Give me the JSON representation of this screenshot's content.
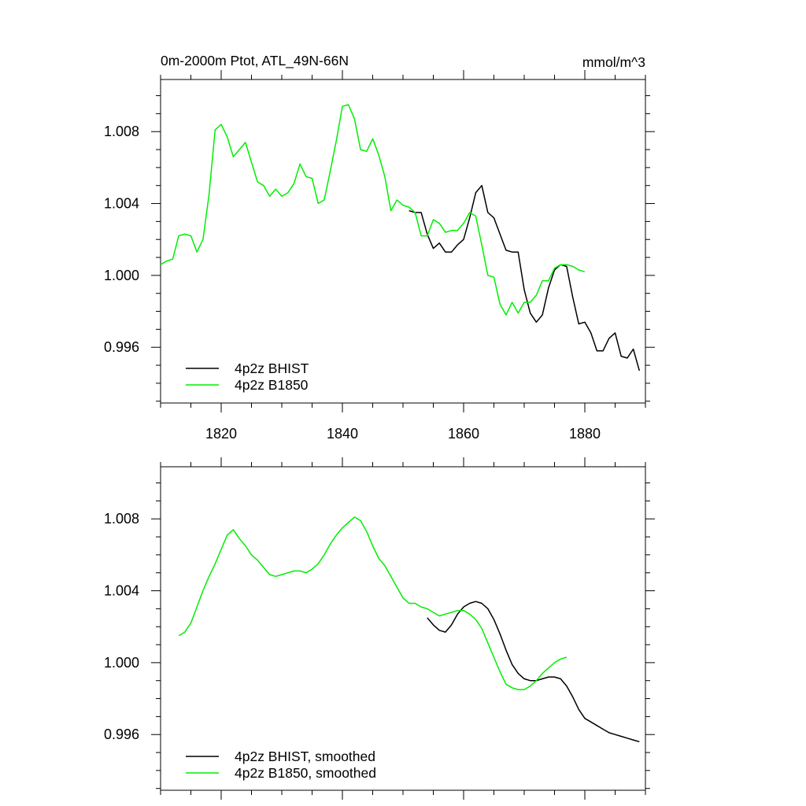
{
  "header": {
    "left_title": "0m-2000m Ptot, ATL_49N-66N",
    "right_title": "mmol/m^3"
  },
  "colors": {
    "bhist": "#000000",
    "b1850": "#00ee00"
  },
  "chart_data": [
    {
      "type": "line",
      "xlim": [
        1810,
        1890
      ],
      "ylim": [
        0.9929,
        1.0109
      ],
      "xticks": [
        1820,
        1840,
        1860,
        1880
      ],
      "xtick_labels": [
        "1820",
        "1840",
        "1860",
        "1880"
      ],
      "yticks": [
        0.996,
        1.0,
        1.004,
        1.008
      ],
      "ytick_labels": [
        "0.996",
        "1.000",
        "1.004",
        "1.008"
      ],
      "legend_position": "bottom-left",
      "series": [
        {
          "name": "4p2z BHIST",
          "color": "#000000",
          "x": [
            1851,
            1852,
            1853,
            1854,
            1855,
            1856,
            1857,
            1858,
            1859,
            1860,
            1861,
            1862,
            1863,
            1864,
            1865,
            1866,
            1867,
            1868,
            1869,
            1870,
            1871,
            1872,
            1873,
            1874,
            1875,
            1876,
            1877,
            1878,
            1879,
            1880,
            1881,
            1882,
            1883,
            1884,
            1885,
            1886,
            1887,
            1888,
            1889
          ],
          "y": [
            1.0036,
            1.0035,
            1.0035,
            1.0023,
            1.0015,
            1.0018,
            1.0013,
            1.0013,
            1.0017,
            1.002,
            1.0032,
            1.0046,
            1.005,
            1.0035,
            1.0032,
            1.0023,
            1.0014,
            1.0013,
            1.0013,
            0.9992,
            0.9979,
            0.9974,
            0.9978,
            0.9993,
            1.0003,
            1.0006,
            1.0005,
            0.9988,
            0.9973,
            0.9974,
            0.9968,
            0.9958,
            0.9958,
            0.9965,
            0.9968,
            0.9955,
            0.9954,
            0.9959,
            0.9947
          ]
        },
        {
          "name": "4p2z B1850",
          "color": "#00ee00",
          "x": [
            1810,
            1811,
            1812,
            1813,
            1814,
            1815,
            1816,
            1817,
            1818,
            1819,
            1820,
            1821,
            1822,
            1823,
            1824,
            1825,
            1826,
            1827,
            1828,
            1829,
            1830,
            1831,
            1832,
            1833,
            1834,
            1835,
            1836,
            1837,
            1838,
            1839,
            1840,
            1841,
            1842,
            1843,
            1844,
            1845,
            1846,
            1847,
            1848,
            1849,
            1850,
            1851,
            1852,
            1853,
            1854,
            1855,
            1856,
            1857,
            1858,
            1859,
            1860,
            1861,
            1862,
            1863,
            1864,
            1865,
            1866,
            1867,
            1868,
            1869,
            1870,
            1871,
            1872,
            1873,
            1874,
            1875,
            1876,
            1877,
            1878,
            1879,
            1880
          ],
          "y": [
            1.0006,
            1.0008,
            1.0009,
            1.0022,
            1.0023,
            1.0022,
            1.0013,
            1.002,
            1.0045,
            1.0081,
            1.0084,
            1.0077,
            1.0066,
            1.007,
            1.0074,
            1.0063,
            1.0052,
            1.005,
            1.0044,
            1.0048,
            1.0044,
            1.0046,
            1.0051,
            1.0062,
            1.0055,
            1.0054,
            1.004,
            1.0042,
            1.0058,
            1.0075,
            1.0094,
            1.0095,
            1.0087,
            1.007,
            1.0069,
            1.0076,
            1.0067,
            1.0055,
            1.0036,
            1.0042,
            1.0039,
            1.0038,
            1.0035,
            1.0022,
            1.0022,
            1.0031,
            1.0029,
            1.0024,
            1.0025,
            1.0025,
            1.0029,
            1.0035,
            1.0033,
            1.0017,
            1.0,
            0.9999,
            0.9984,
            0.9978,
            0.9985,
            0.9979,
            0.9985,
            0.9985,
            0.9989,
            0.9997,
            0.9997,
            1.0004,
            1.0006,
            1.0006,
            1.0005,
            1.0003,
            1.0002
          ]
        }
      ]
    },
    {
      "type": "line",
      "xlim": [
        1810,
        1890
      ],
      "ylim": [
        0.9929,
        1.0109
      ],
      "xticks": [
        1820,
        1840,
        1860,
        1880
      ],
      "yticks": [
        0.996,
        1.0,
        1.004,
        1.008
      ],
      "ytick_labels": [
        "0.996",
        "1.000",
        "1.004",
        "1.008"
      ],
      "legend_position": "bottom-left",
      "series": [
        {
          "name": "4p2z BHIST, smoothed",
          "color": "#000000",
          "x": [
            1854,
            1855,
            1856,
            1857,
            1858,
            1859,
            1860,
            1861,
            1862,
            1863,
            1864,
            1865,
            1866,
            1867,
            1868,
            1869,
            1870,
            1871,
            1872,
            1873,
            1874,
            1875,
            1876,
            1877,
            1878,
            1879,
            1880,
            1881,
            1882,
            1883,
            1884,
            1885,
            1886,
            1887,
            1888,
            1889
          ],
          "y": [
            1.0025,
            1.0021,
            1.0018,
            1.0017,
            1.0021,
            1.0027,
            1.0031,
            1.0033,
            1.0034,
            1.0033,
            1.003,
            1.0024,
            1.0016,
            1.0007,
            0.9999,
            0.9994,
            0.9991,
            0.999,
            0.999,
            0.9991,
            0.9992,
            0.9992,
            0.9991,
            0.9987,
            0.9981,
            0.9974,
            0.9969,
            0.9967,
            0.9965,
            0.9963,
            0.9961,
            0.996,
            0.9959,
            0.9958,
            0.9957,
            0.9956
          ]
        },
        {
          "name": "4p2z B1850, smoothed",
          "color": "#00ee00",
          "x": [
            1813,
            1814,
            1815,
            1816,
            1817,
            1818,
            1819,
            1820,
            1821,
            1822,
            1823,
            1824,
            1825,
            1826,
            1827,
            1828,
            1829,
            1830,
            1831,
            1832,
            1833,
            1834,
            1835,
            1836,
            1837,
            1838,
            1839,
            1840,
            1841,
            1842,
            1843,
            1844,
            1845,
            1846,
            1847,
            1848,
            1849,
            1850,
            1851,
            1852,
            1853,
            1854,
            1855,
            1856,
            1857,
            1858,
            1859,
            1860,
            1861,
            1862,
            1863,
            1864,
            1865,
            1866,
            1867,
            1868,
            1869,
            1870,
            1871,
            1872,
            1873,
            1874,
            1875,
            1876,
            1877
          ],
          "y": [
            1.0015,
            1.0017,
            1.0022,
            1.0031,
            1.004,
            1.0048,
            1.0055,
            1.0063,
            1.0071,
            1.0074,
            1.0069,
            1.0065,
            1.006,
            1.0057,
            1.0053,
            1.0049,
            1.0048,
            1.0049,
            1.005,
            1.0051,
            1.0051,
            1.005,
            1.0052,
            1.0055,
            1.006,
            1.0066,
            1.0071,
            1.0075,
            1.0078,
            1.0081,
            1.0079,
            1.0073,
            1.0065,
            1.0058,
            1.0054,
            1.0048,
            1.0042,
            1.0036,
            1.0033,
            1.0033,
            1.0031,
            1.003,
            1.0028,
            1.0026,
            1.0027,
            1.0028,
            1.0029,
            1.0029,
            1.0027,
            1.0024,
            1.0019,
            1.0011,
            1.0003,
            0.9995,
            0.9988,
            0.9986,
            0.9985,
            0.9985,
            0.9987,
            0.999,
            0.9994,
            0.9997,
            1.0,
            1.0002,
            1.0003
          ]
        }
      ]
    }
  ]
}
